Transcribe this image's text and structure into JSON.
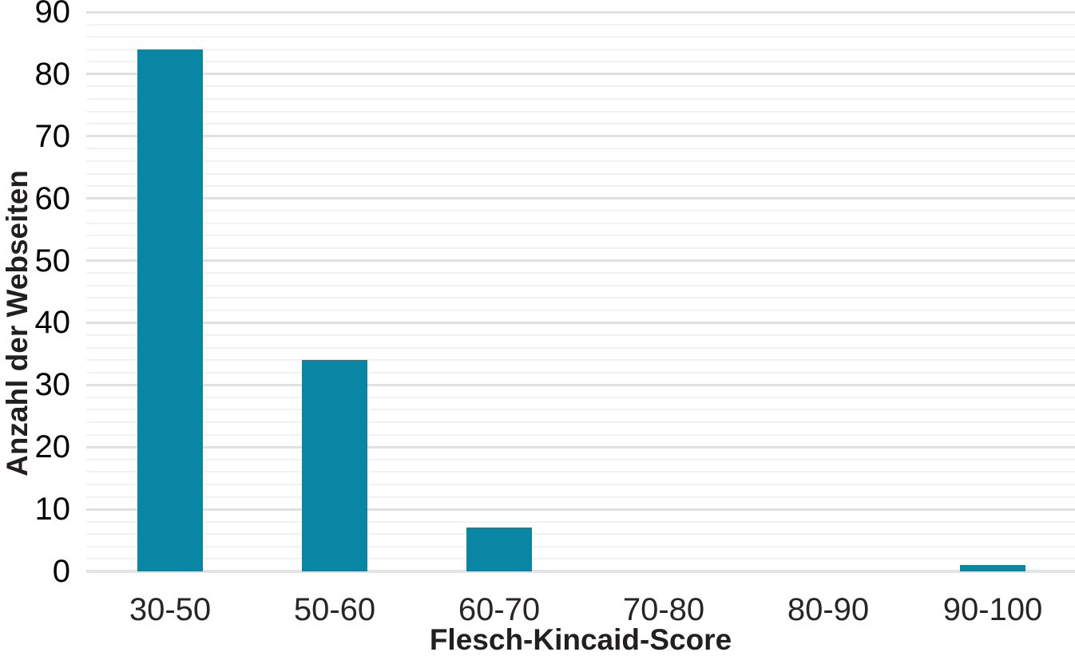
{
  "chart_data": {
    "type": "bar",
    "categories": [
      "30-50",
      "50-60",
      "60-70",
      "70-80",
      "80-90",
      "90-100"
    ],
    "values": [
      84,
      34,
      7,
      0,
      0,
      1
    ],
    "title": "",
    "xlabel": "Flesch-Kincaid-Score",
    "ylabel": "Anzahl der Webseiten",
    "ylim": [
      0,
      90
    ],
    "y_tick_step": 10,
    "y_tick_labels": [
      "0",
      "10",
      "20",
      "30",
      "40",
      "50",
      "60",
      "70",
      "80",
      "90"
    ],
    "minor_grid_step": 2,
    "grid": "horizontal-major-and-minor",
    "legend": "none",
    "bar_color": "#0886A4"
  }
}
